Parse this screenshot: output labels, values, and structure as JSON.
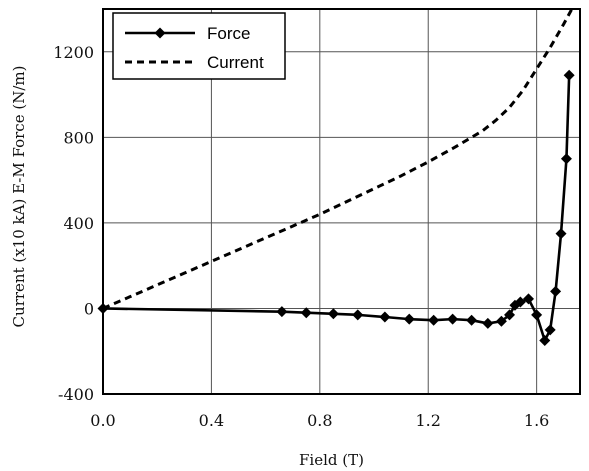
{
  "chart_data": {
    "type": "line",
    "xlabel": "Field (T)",
    "ylabel": "Current (x10 kA)  E-M Force (N/m)",
    "xlim": [
      0.0,
      1.76
    ],
    "ylim": [
      -400,
      1400
    ],
    "x_ticks": [
      "0.0",
      "0.4",
      "0.8",
      "1.2",
      "1.6"
    ],
    "y_ticks": [
      "-400",
      "0",
      "400",
      "800",
      "1200"
    ],
    "x_tick_values": [
      0.0,
      0.4,
      0.8,
      1.2,
      1.6
    ],
    "y_tick_values": [
      -400,
      0,
      400,
      800,
      1200
    ],
    "grid": true,
    "legend_position": "top-left",
    "series": [
      {
        "name": "Force",
        "style": "solid-with-diamond-markers",
        "color": "#000000",
        "x": [
          0.0,
          0.66,
          0.75,
          0.85,
          0.94,
          1.04,
          1.13,
          1.22,
          1.29,
          1.36,
          1.42,
          1.47,
          1.5,
          1.52,
          1.54,
          1.57,
          1.6,
          1.63,
          1.65,
          1.67,
          1.69,
          1.71,
          1.72
        ],
        "y": [
          0,
          -15,
          -20,
          -25,
          -30,
          -40,
          -50,
          -55,
          -50,
          -55,
          -70,
          -60,
          -30,
          15,
          30,
          45,
          -30,
          -150,
          -100,
          80,
          350,
          700,
          1090
        ]
      },
      {
        "name": "Current",
        "style": "dashed",
        "color": "#000000",
        "x": [
          0.0,
          0.1,
          0.2,
          0.3,
          0.4,
          0.5,
          0.6,
          0.7,
          0.8,
          0.9,
          1.0,
          1.1,
          1.2,
          1.3,
          1.4,
          1.45,
          1.5,
          1.55,
          1.6,
          1.65,
          1.7,
          1.73
        ],
        "y": [
          0,
          55,
          110,
          165,
          220,
          275,
          330,
          385,
          440,
          500,
          560,
          620,
          685,
          755,
          830,
          880,
          940,
          1020,
          1120,
          1220,
          1330,
          1400
        ]
      }
    ]
  }
}
